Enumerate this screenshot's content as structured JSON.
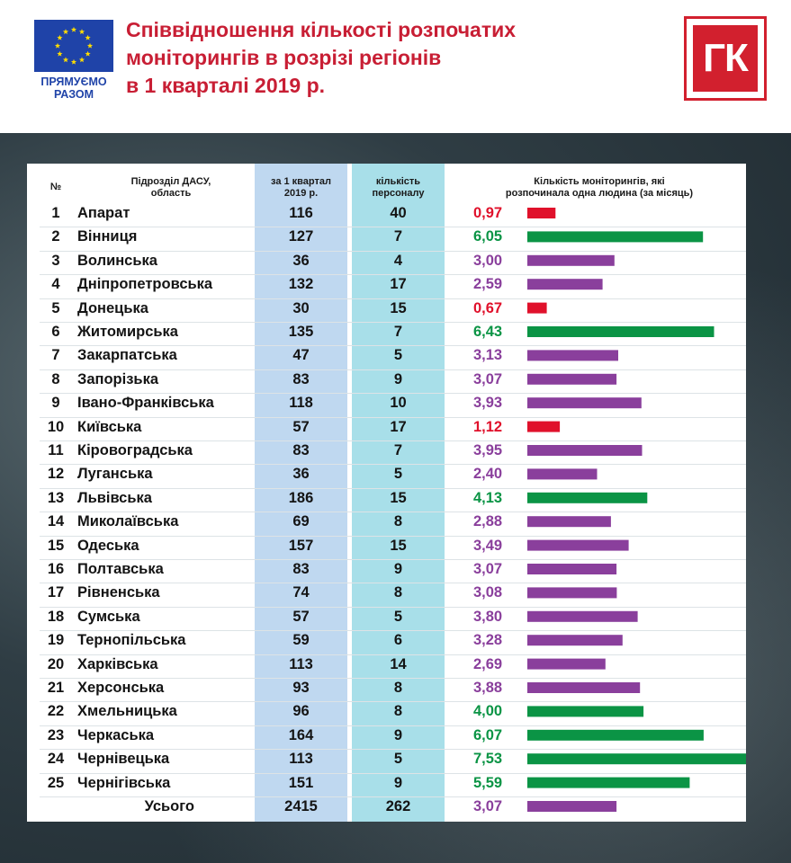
{
  "header": {
    "title_line1": "Співвідношення кількості розпочатих",
    "title_line2": "моніторингів в розрізі регіонів",
    "title_line3": "в 1 кварталі 2019 р.",
    "eu_caption_line1": "ПРЯМУЄМО",
    "eu_caption_line2": "РАЗОМ",
    "logo_text": "ГК"
  },
  "colors": {
    "title": "#c81e34",
    "eu_blue": "#1f43a8",
    "logo_red": "#d2202e",
    "bar_red": "#e0112b",
    "bar_green": "#0b9445",
    "bar_purple": "#8a3f9c",
    "col_quarter_bg": "#bfd8f0",
    "col_staff_bg": "#a8dfe9"
  },
  "table": {
    "headers": {
      "num": "№",
      "unit_line1": "Підрозділ ДАСУ,",
      "unit_line2": "область",
      "quarter_line1": "за 1 квартал",
      "quarter_line2": "2019 р.",
      "staff_line1": "кількість",
      "staff_line2": "персоналу",
      "ratio_line1": "Кількість моніторингів, які",
      "ratio_line2": "розпочинала одна людина (за місяць)"
    }
  },
  "chart_data": {
    "type": "bar",
    "orientation": "horizontal",
    "xlim": [
      0,
      7.53
    ],
    "columns": [
      "№",
      "Підрозділ ДАСУ, область",
      "за 1 квартал 2019 р.",
      "кількість персоналу",
      "Кількість моніторингів, які розпочинала одна людина (за місяць)"
    ],
    "rows": [
      {
        "num": "1",
        "name": "Апарат",
        "quarter": "116",
        "staff": "40",
        "value": 0.97,
        "label": "0,97",
        "color": "red"
      },
      {
        "num": "2",
        "name": "Вінниця",
        "quarter": "127",
        "staff": "7",
        "value": 6.05,
        "label": "6,05",
        "color": "green"
      },
      {
        "num": "3",
        "name": "Волинська",
        "quarter": "36",
        "staff": "4",
        "value": 3.0,
        "label": "3,00",
        "color": "purple"
      },
      {
        "num": "4",
        "name": "Дніпропетровська",
        "quarter": "132",
        "staff": "17",
        "value": 2.59,
        "label": "2,59",
        "color": "purple"
      },
      {
        "num": "5",
        "name": "Донецька",
        "quarter": "30",
        "staff": "15",
        "value": 0.67,
        "label": "0,67",
        "color": "red"
      },
      {
        "num": "6",
        "name": "Житомирська",
        "quarter": "135",
        "staff": "7",
        "value": 6.43,
        "label": "6,43",
        "color": "green"
      },
      {
        "num": "7",
        "name": "Закарпатська",
        "quarter": "47",
        "staff": "5",
        "value": 3.13,
        "label": "3,13",
        "color": "purple"
      },
      {
        "num": "8",
        "name": "Запорізька",
        "quarter": "83",
        "staff": "9",
        "value": 3.07,
        "label": "3,07",
        "color": "purple"
      },
      {
        "num": "9",
        "name": "Івано-Франківська",
        "quarter": "118",
        "staff": "10",
        "value": 3.93,
        "label": "3,93",
        "color": "purple"
      },
      {
        "num": "10",
        "name": "Київська",
        "quarter": "57",
        "staff": "17",
        "value": 1.12,
        "label": "1,12",
        "color": "red"
      },
      {
        "num": "11",
        "name": "Кіровоградська",
        "quarter": "83",
        "staff": "7",
        "value": 3.95,
        "label": "3,95",
        "color": "purple"
      },
      {
        "num": "12",
        "name": "Луганська",
        "quarter": "36",
        "staff": "5",
        "value": 2.4,
        "label": "2,40",
        "color": "purple"
      },
      {
        "num": "13",
        "name": "Львівська",
        "quarter": "186",
        "staff": "15",
        "value": 4.13,
        "label": "4,13",
        "color": "green"
      },
      {
        "num": "14",
        "name": "Миколаївська",
        "quarter": "69",
        "staff": "8",
        "value": 2.88,
        "label": "2,88",
        "color": "purple"
      },
      {
        "num": "15",
        "name": "Одеська",
        "quarter": "157",
        "staff": "15",
        "value": 3.49,
        "label": "3,49",
        "color": "purple"
      },
      {
        "num": "16",
        "name": "Полтавська",
        "quarter": "83",
        "staff": "9",
        "value": 3.07,
        "label": "3,07",
        "color": "purple"
      },
      {
        "num": "17",
        "name": "Рівненська",
        "quarter": "74",
        "staff": "8",
        "value": 3.08,
        "label": "3,08",
        "color": "purple"
      },
      {
        "num": "18",
        "name": "Сумська",
        "quarter": "57",
        "staff": "5",
        "value": 3.8,
        "label": "3,80",
        "color": "purple"
      },
      {
        "num": "19",
        "name": "Тернопільська",
        "quarter": "59",
        "staff": "6",
        "value": 3.28,
        "label": "3,28",
        "color": "purple"
      },
      {
        "num": "20",
        "name": "Харківська",
        "quarter": "113",
        "staff": "14",
        "value": 2.69,
        "label": "2,69",
        "color": "purple"
      },
      {
        "num": "21",
        "name": "Херсонська",
        "quarter": "93",
        "staff": "8",
        "value": 3.88,
        "label": "3,88",
        "color": "purple"
      },
      {
        "num": "22",
        "name": "Хмельницька",
        "quarter": "96",
        "staff": "8",
        "value": 4.0,
        "label": "4,00",
        "color": "green"
      },
      {
        "num": "23",
        "name": "Черкаська",
        "quarter": "164",
        "staff": "9",
        "value": 6.07,
        "label": "6,07",
        "color": "green"
      },
      {
        "num": "24",
        "name": "Чернівецька",
        "quarter": "113",
        "staff": "5",
        "value": 7.53,
        "label": "7,53",
        "color": "green"
      },
      {
        "num": "25",
        "name": "Чернігівська",
        "quarter": "151",
        "staff": "9",
        "value": 5.59,
        "label": "5,59",
        "color": "green"
      }
    ],
    "total": {
      "name": "Усього",
      "quarter": "2415",
      "staff": "262",
      "value": 3.07,
      "label": "3,07",
      "color": "purple"
    }
  }
}
